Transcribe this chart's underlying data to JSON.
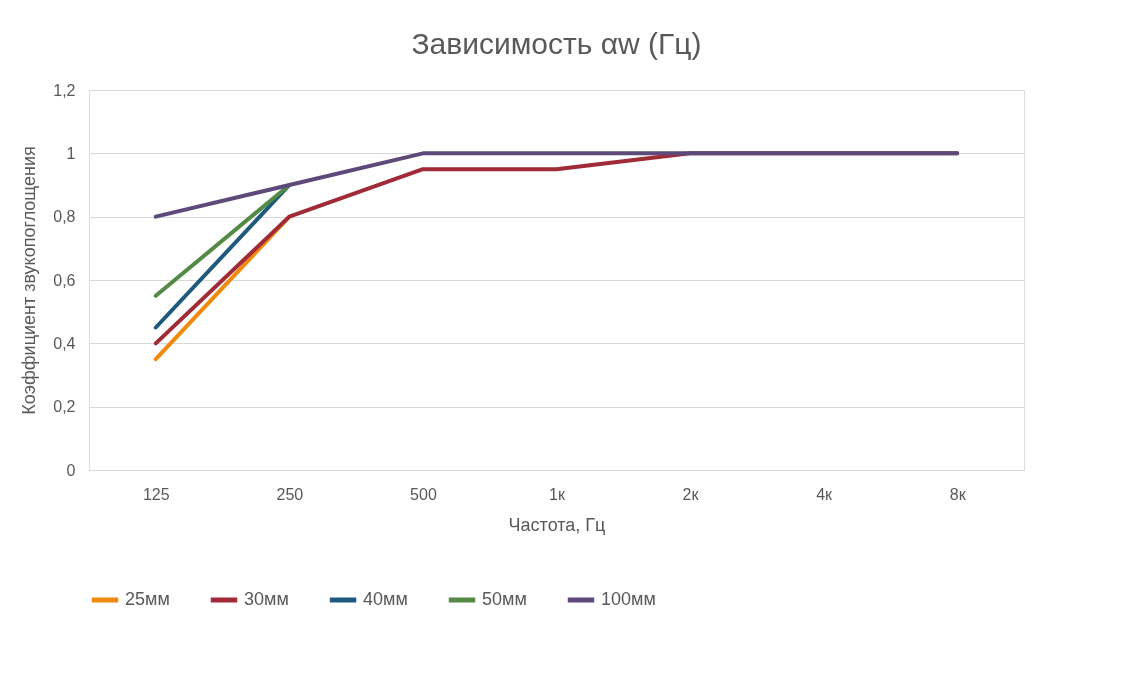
{
  "chart_data": {
    "type": "line",
    "title": "Зависимость αw (Гц)",
    "xlabel": "Частота, Гц",
    "ylabel": "Коэффициент звукопоглощения",
    "categories": [
      "125",
      "250",
      "500",
      "1к",
      "2к",
      "4к",
      "8к"
    ],
    "series": [
      {
        "name": "25мм",
        "color": "#f08a0c",
        "values": [
          0.35,
          0.8,
          null,
          null,
          null,
          null,
          null
        ]
      },
      {
        "name": "30мм",
        "color": "#a02b37",
        "values": [
          0.4,
          0.8,
          0.95,
          0.95,
          1,
          1,
          1
        ]
      },
      {
        "name": "40мм",
        "color": "#1f5a7e",
        "values": [
          0.45,
          0.9,
          null,
          null,
          null,
          null,
          null
        ]
      },
      {
        "name": "50мм",
        "color": "#538a45",
        "values": [
          0.55,
          0.9,
          null,
          null,
          null,
          null,
          null
        ]
      },
      {
        "name": "100мм",
        "color": "#5e4a7a",
        "values": [
          0.8,
          0.9,
          1,
          1,
          1,
          1,
          1
        ]
      }
    ],
    "ylim": [
      0,
      1.2
    ],
    "yticks": [
      {
        "value": 0,
        "label": "0"
      },
      {
        "value": 0.2,
        "label": "0,2"
      },
      {
        "value": 0.4,
        "label": "0,4"
      },
      {
        "value": 0.6,
        "label": "0,6"
      },
      {
        "value": 0.8,
        "label": "0,8"
      },
      {
        "value": 1,
        "label": "1"
      },
      {
        "value": 1.2,
        "label": "1,2"
      }
    ],
    "grid": "y",
    "legend": "bottom",
    "marker": "none",
    "line_style": "solid"
  }
}
